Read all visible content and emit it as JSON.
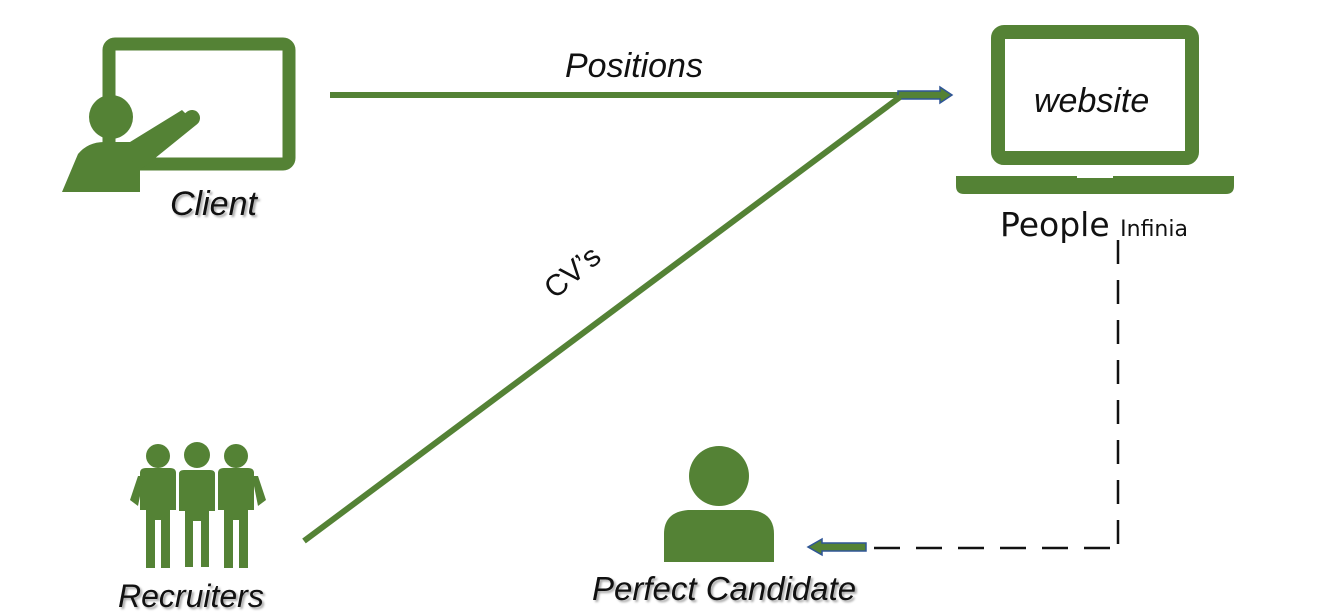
{
  "colors": {
    "green": "#548235",
    "arrow_blue": "#2f5597",
    "text": "#111111"
  },
  "nodes": {
    "client": {
      "label": "Client",
      "icon": "presenter-board-icon"
    },
    "website": {
      "label": "website",
      "icon": "laptop-icon"
    },
    "people_infinia": {
      "label_main": "People",
      "label_small": "Infinia"
    },
    "recruiters": {
      "label": "Recruiters",
      "icon": "group-people-icon"
    },
    "perfect_candidate": {
      "label": "Perfect Candidate",
      "icon": "person-icon"
    }
  },
  "edges": {
    "positions": {
      "label": "Positions"
    },
    "cvs": {
      "label": "CV’s"
    }
  }
}
